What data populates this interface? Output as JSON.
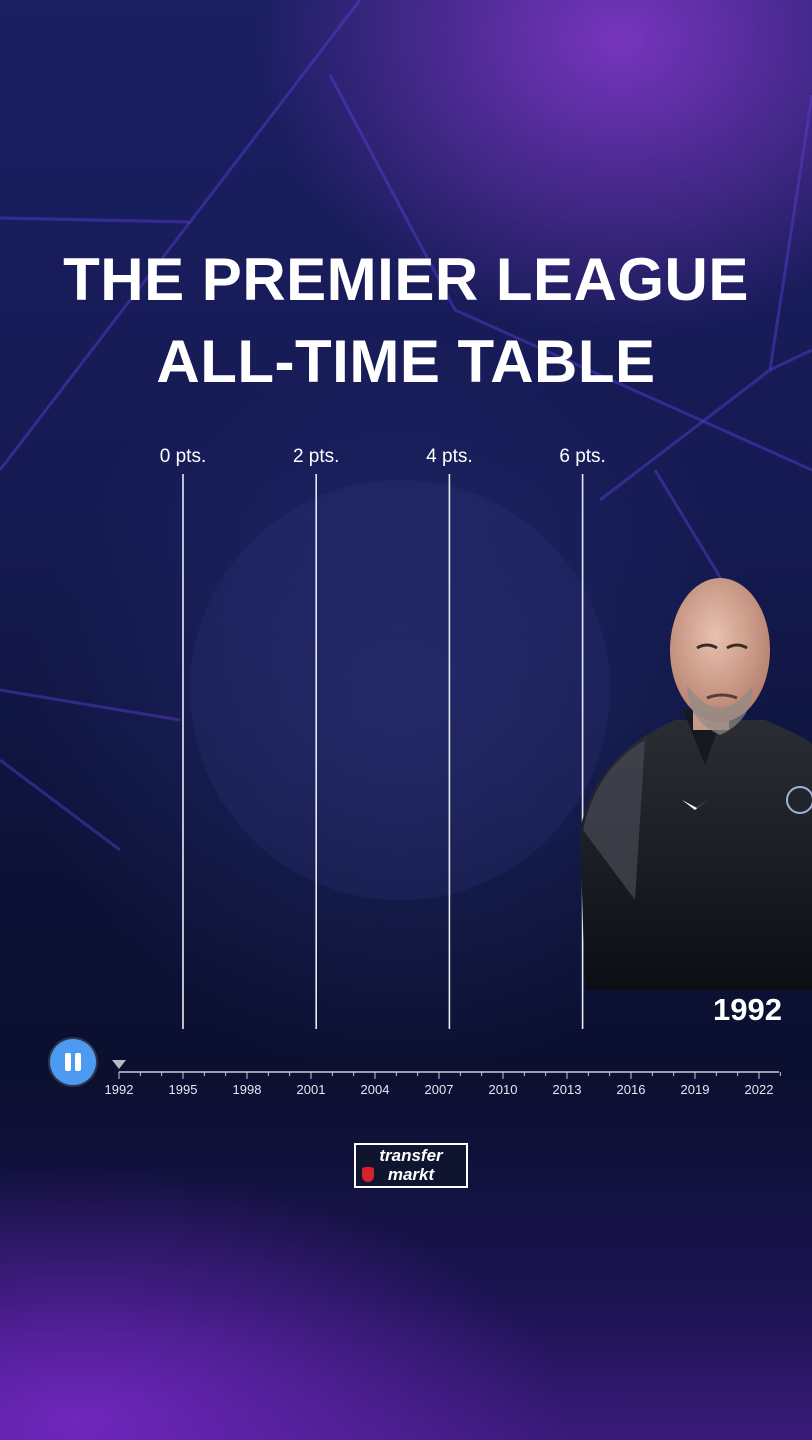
{
  "title": {
    "line1": "THE PREMIER LEAGUE",
    "line2": "ALL-TIME TABLE"
  },
  "chart_data": {
    "type": "bar",
    "title": "THE PREMIER LEAGUE ALL-TIME TABLE",
    "x_axis_ticks": [
      "0 pts.",
      "2 pts.",
      "4 pts.",
      "6 pts."
    ],
    "x_axis_values": [
      0,
      2,
      4,
      6
    ],
    "current_year": "1992",
    "series": []
  },
  "player": {
    "year_readout": "1992",
    "pause_icon": "pause-icon"
  },
  "timeline": {
    "years": [
      "1992",
      "1995",
      "1998",
      "2001",
      "2004",
      "2007",
      "2010",
      "2013",
      "2016",
      "2019",
      "2022"
    ],
    "current": "1992"
  },
  "logo": {
    "line1": "transfer",
    "line2": "markt"
  },
  "colors": {
    "accent": "#4c9bf0",
    "text": "#ffffff",
    "background": "#151a52"
  }
}
